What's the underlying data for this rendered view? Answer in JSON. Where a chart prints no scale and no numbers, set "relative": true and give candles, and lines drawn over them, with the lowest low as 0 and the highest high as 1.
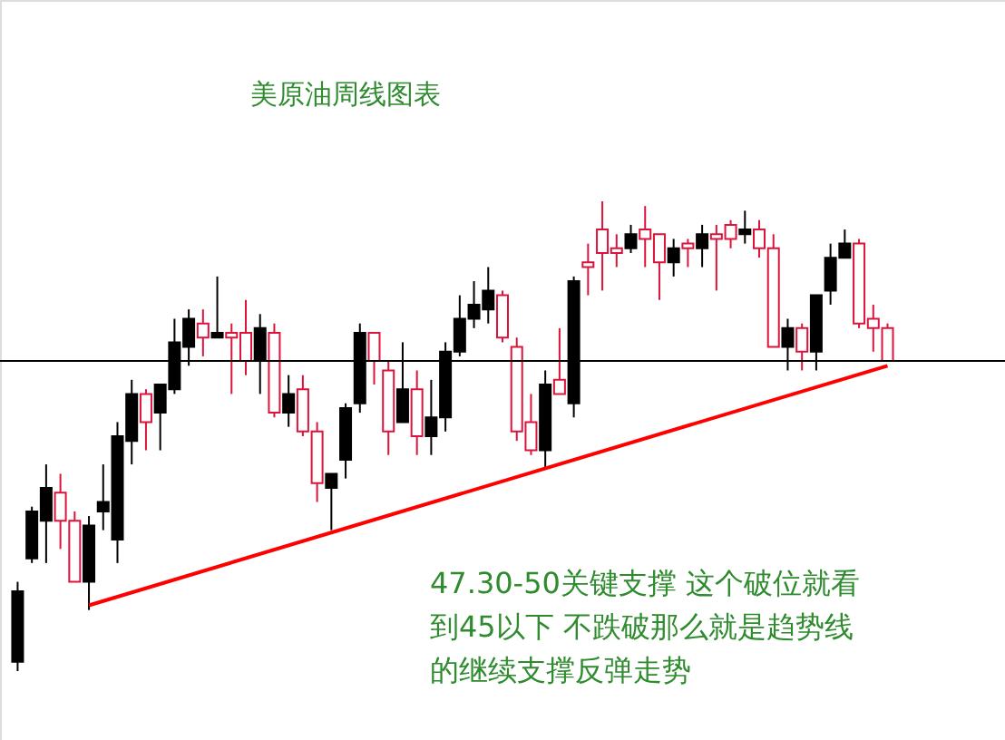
{
  "chart_data": {
    "type": "candlestick",
    "title": "美原油周线图表",
    "relative": true,
    "annotations": [
      "47.30-50关键支撑  这个破位就看到45以下  不跌破那么就是趋势线的继续支撑反弹走势"
    ],
    "categories": [
      null,
      null,
      null,
      null,
      null,
      null,
      null,
      null,
      null,
      null,
      null,
      null,
      null,
      null,
      null,
      null,
      null,
      null,
      null,
      null,
      null,
      null,
      null,
      null,
      null,
      null,
      null,
      null,
      null,
      null,
      null,
      null,
      null,
      null,
      null,
      null,
      null,
      null,
      null,
      null,
      null,
      null,
      null,
      null,
      null,
      null,
      null,
      null,
      null,
      null,
      null,
      null,
      null,
      null,
      null,
      null,
      null,
      null,
      null,
      null,
      null,
      null
    ],
    "ohlc": [
      [
        0.02,
        0.19,
        0,
        0.17
      ],
      [
        0.24,
        0.35,
        0.23,
        0.34
      ],
      [
        0.32,
        0.44,
        0.23,
        0.39
      ],
      [
        0.38,
        0.42,
        0.26,
        0.32
      ],
      [
        0.32,
        0.34,
        0.19,
        0.19
      ],
      [
        0.19,
        0.33,
        0.13,
        0.31
      ],
      [
        0.34,
        0.44,
        0.3,
        0.36
      ],
      [
        0.28,
        0.53,
        0.23,
        0.5
      ],
      [
        0.49,
        0.62,
        0.44,
        0.59
      ],
      [
        0.59,
        0.6,
        0.47,
        0.53
      ],
      [
        0.55,
        0.61,
        0.47,
        0.61
      ],
      [
        0.6,
        0.75,
        0.59,
        0.7
      ],
      [
        0.69,
        0.77,
        0.65,
        0.75
      ],
      [
        0.74,
        0.77,
        0.67,
        0.71
      ],
      [
        0.71,
        0.84,
        0.71,
        0.72
      ],
      [
        0.72,
        0.74,
        0.59,
        0.71
      ],
      [
        0.72,
        0.79,
        0.63,
        0.66
      ],
      [
        0.66,
        0.76,
        0.59,
        0.73
      ],
      [
        0.72,
        0.74,
        0.54,
        0.55
      ],
      [
        0.55,
        0.63,
        0.52,
        0.59
      ],
      [
        0.6,
        0.63,
        0.5,
        0.51
      ],
      [
        0.51,
        0.53,
        0.36,
        0.4
      ],
      [
        0.39,
        0.42,
        0.3,
        0.42
      ],
      [
        0.45,
        0.57,
        0.41,
        0.56
      ],
      [
        0.57,
        0.74,
        0.55,
        0.72
      ],
      [
        0.72,
        0.72,
        0.61,
        0.66
      ],
      [
        0.64,
        0.66,
        0.46,
        0.51
      ],
      [
        0.53,
        0.7,
        0.53,
        0.6
      ],
      [
        0.6,
        0.64,
        0.46,
        0.5
      ],
      [
        0.5,
        0.62,
        0.46,
        0.54
      ],
      [
        0.54,
        0.7,
        0.51,
        0.68
      ],
      [
        0.68,
        0.8,
        0.67,
        0.75
      ],
      [
        0.75,
        0.83,
        0.73,
        0.78
      ],
      [
        0.77,
        0.86,
        0.74,
        0.81
      ],
      [
        0.8,
        0.81,
        0.7,
        0.71
      ],
      [
        0.69,
        0.71,
        0.49,
        0.51
      ],
      [
        0.53,
        0.59,
        0.46,
        0.47
      ],
      [
        0.47,
        0.64,
        0.43,
        0.61
      ],
      [
        0.62,
        0.73,
        0.59,
        0.59
      ],
      [
        0.57,
        0.84,
        0.54,
        0.83
      ],
      [
        0.87,
        0.91,
        0.8,
        0.86
      ],
      [
        0.94,
        1,
        0.81,
        0.89
      ],
      [
        0.9,
        0.93,
        0.86,
        0.89
      ],
      [
        0.9,
        0.95,
        0.89,
        0.93
      ],
      [
        0.94,
        0.99,
        0.86,
        0.92
      ],
      [
        0.93,
        0.93,
        0.79,
        0.87
      ],
      [
        0.87,
        0.92,
        0.84,
        0.9
      ],
      [
        0.91,
        0.92,
        0.86,
        0.9
      ],
      [
        0.9,
        0.95,
        0.86,
        0.93
      ],
      [
        0.93,
        0.95,
        0.81,
        0.92
      ],
      [
        0.95,
        0.96,
        0.9,
        0.92
      ],
      [
        0.93,
        0.98,
        0.91,
        0.94
      ],
      [
        0.94,
        0.96,
        0.88,
        0.9
      ],
      [
        0.9,
        0.93,
        0.69,
        0.69
      ],
      [
        0.69,
        0.75,
        0.64,
        0.73
      ],
      [
        0.73,
        0.74,
        0.64,
        0.68
      ],
      [
        0.68,
        0.8,
        0.64,
        0.8
      ],
      [
        0.81,
        0.91,
        0.78,
        0.88
      ],
      [
        0.88,
        0.94,
        0.88,
        0.91
      ],
      [
        0.91,
        0.92,
        0.73,
        0.74
      ],
      [
        0.75,
        0.78,
        0.68,
        0.73
      ],
      [
        0.73,
        0.74,
        0.66,
        0.66
      ]
    ],
    "colors": [
      "#000000",
      "#000000",
      "#000000",
      "#dc143c",
      "#dc143c",
      "#000000",
      "#000000",
      "#000000",
      "#000000",
      "#dc143c",
      "#000000",
      "#000000",
      "#000000",
      "#dc143c",
      "#000000",
      "#dc143c",
      "#dc143c",
      "#000000",
      "#dc143c",
      "#000000",
      "#dc143c",
      "#dc143c",
      "#000000",
      "#000000",
      "#000000",
      "#dc143c",
      "#dc143c",
      "#000000",
      "#dc143c",
      "#000000",
      "#000000",
      "#000000",
      "#000000",
      "#000000",
      "#dc143c",
      "#dc143c",
      "#dc143c",
      "#000000",
      "#dc143c",
      "#000000",
      "#dc143c",
      "#dc143c",
      "#dc143c",
      "#000000",
      "#dc143c",
      "#dc143c",
      "#000000",
      "#dc143c",
      "#000000",
      "#dc143c",
      "#dc143c",
      "#000000",
      "#dc143c",
      "#dc143c",
      "#000000",
      "#dc143c",
      "#000000",
      "#000000",
      "#000000",
      "#dc143c",
      "#dc143c",
      "#dc143c"
    ],
    "series": [
      {
        "type": "line",
        "color": "#ff0000",
        "values": [
          null,
          null,
          null,
          null,
          null,
          0.14,
          null,
          null,
          null,
          null,
          null,
          null,
          null,
          null,
          null,
          null,
          null,
          null,
          null,
          null,
          null,
          null,
          null,
          null,
          null,
          null,
          null,
          null,
          null,
          null,
          null,
          null,
          null,
          null,
          null,
          null,
          null,
          null,
          null,
          null,
          null,
          null,
          null,
          null,
          null,
          null,
          null,
          null,
          null,
          null,
          null,
          null,
          null,
          null,
          null,
          null,
          null,
          null,
          null,
          null,
          null,
          0.65
        ]
      }
    ],
    "ref_lines": [
      {
        "axis": "y",
        "value": 0.66,
        "color": "#000000"
      }
    ]
  }
}
